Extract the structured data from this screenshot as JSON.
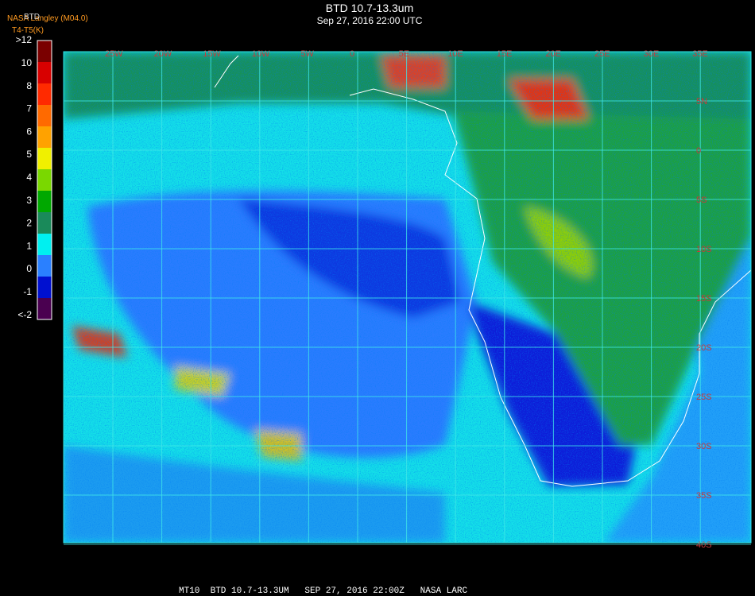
{
  "header": {
    "title": "BTD 10.7-13.3um",
    "subtitle": "Sep 27, 2016 22:00 UTC",
    "source": "NASA Langley (M04.0)",
    "product": "BTD",
    "units": "T4-T5(K)"
  },
  "colorbar": [
    {
      "label": ">12",
      "color": "#7a0000"
    },
    {
      "label": "10",
      "color": "#d80000"
    },
    {
      "label": "8",
      "color": "#ff2a00"
    },
    {
      "label": "7",
      "color": "#ff6a00"
    },
    {
      "label": "6",
      "color": "#ffa200"
    },
    {
      "label": "5",
      "color": "#f0f000"
    },
    {
      "label": "4",
      "color": "#7ad800"
    },
    {
      "label": "3",
      "color": "#00a800"
    },
    {
      "label": "2",
      "color": "#1a8a5a"
    },
    {
      "label": "1",
      "color": "#00f0f0"
    },
    {
      "label": "0",
      "color": "#2a80ff"
    },
    {
      "label": "-1",
      "color": "#0010d0"
    },
    {
      "label": "<-2",
      "color": "#4a0050"
    }
  ],
  "longitudes": [
    "25W",
    "20W",
    "15W",
    "10W",
    "5W",
    "0",
    "5E",
    "10E",
    "15E",
    "20E",
    "25E",
    "30E",
    "35E"
  ],
  "latitudes": [
    "5N",
    "0",
    "5S",
    "10S",
    "15S",
    "20S",
    "25S",
    "30S",
    "35S",
    "40S"
  ],
  "footer": "MT10  BTD 10.7-13.3UM   SEP 27, 2016 22:00Z   NASA LARC"
}
